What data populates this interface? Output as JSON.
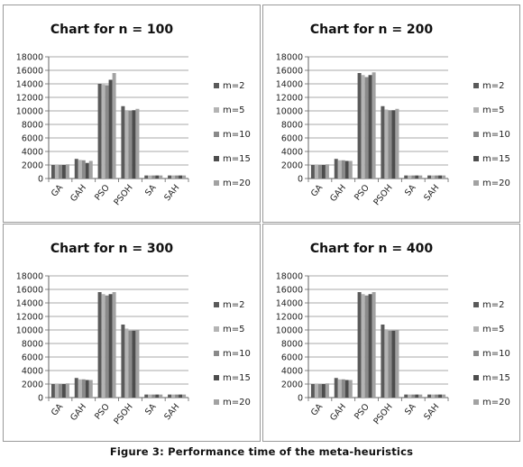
{
  "caption": "Figure 3: Performance time of the meta-heuristics",
  "legend": [
    "m=2",
    "m=5",
    "m=10",
    "m=15",
    "m=20"
  ],
  "series_colors": [
    "#5a5a5a",
    "#b4b4b4",
    "#8a8a8a",
    "#4d4d4d",
    "#a2a2a2"
  ],
  "chart_data": [
    {
      "type": "bar",
      "title": "Chart for n = 100",
      "categories": [
        "GA",
        "GAH",
        "PSO",
        "PSOH",
        "SA",
        "SAH"
      ],
      "ylim": [
        0,
        18000
      ],
      "yticks": [
        "0",
        "2000",
        "4000",
        "6000",
        "8000",
        "10000",
        "12000",
        "14000",
        "16000",
        "18000"
      ],
      "grid": true,
      "legend_position": "right",
      "series": [
        {
          "name": "m=2",
          "values": [
            2000,
            2900,
            14000,
            10700,
            450,
            450
          ]
        },
        {
          "name": "m=5",
          "values": [
            2000,
            2750,
            13900,
            10100,
            450,
            450
          ]
        },
        {
          "name": "m=10",
          "values": [
            2000,
            2700,
            13800,
            10050,
            450,
            450
          ]
        },
        {
          "name": "m=15",
          "values": [
            2000,
            2300,
            14600,
            10100,
            450,
            450
          ]
        },
        {
          "name": "m=20",
          "values": [
            2100,
            2600,
            15600,
            10300,
            450,
            450
          ]
        }
      ]
    },
    {
      "type": "bar",
      "title": "Chart for n = 200",
      "categories": [
        "GA",
        "GAH",
        "PSO",
        "PSOH",
        "SA",
        "SAH"
      ],
      "ylim": [
        0,
        18000
      ],
      "yticks": [
        "0",
        "2000",
        "4000",
        "6000",
        "8000",
        "10000",
        "12000",
        "14000",
        "16000",
        "18000"
      ],
      "grid": true,
      "legend_position": "right",
      "series": [
        {
          "name": "m=2",
          "values": [
            2000,
            2900,
            15600,
            10700,
            450,
            450
          ]
        },
        {
          "name": "m=5",
          "values": [
            2000,
            2700,
            15300,
            10200,
            450,
            450
          ]
        },
        {
          "name": "m=10",
          "values": [
            2000,
            2700,
            15000,
            10100,
            450,
            450
          ]
        },
        {
          "name": "m=15",
          "values": [
            2000,
            2600,
            15300,
            10100,
            450,
            450
          ]
        },
        {
          "name": "m=20",
          "values": [
            2100,
            2600,
            15700,
            10300,
            450,
            450
          ]
        }
      ]
    },
    {
      "type": "bar",
      "title": "Chart for n = 300",
      "categories": [
        "GA",
        "GAH",
        "PSO",
        "PSOH",
        "SA",
        "SAH"
      ],
      "ylim": [
        0,
        18000
      ],
      "yticks": [
        "0",
        "2000",
        "4000",
        "6000",
        "8000",
        "10000",
        "12000",
        "14000",
        "16000",
        "18000"
      ],
      "grid": true,
      "legend_position": "right",
      "series": [
        {
          "name": "m=2",
          "values": [
            2000,
            2900,
            15600,
            10800,
            450,
            450
          ]
        },
        {
          "name": "m=5",
          "values": [
            2000,
            2700,
            15300,
            10200,
            450,
            450
          ]
        },
        {
          "name": "m=10",
          "values": [
            2000,
            2700,
            15100,
            9900,
            450,
            450
          ]
        },
        {
          "name": "m=15",
          "values": [
            2000,
            2600,
            15300,
            9900,
            450,
            450
          ]
        },
        {
          "name": "m=20",
          "values": [
            2100,
            2600,
            15600,
            10000,
            450,
            450
          ]
        }
      ]
    },
    {
      "type": "bar",
      "title": "Chart for n = 400",
      "categories": [
        "GA",
        "GAH",
        "PSO",
        "PSOH",
        "SA",
        "SAH"
      ],
      "ylim": [
        0,
        18000
      ],
      "yticks": [
        "0",
        "2000",
        "4000",
        "6000",
        "8000",
        "10000",
        "12000",
        "14000",
        "16000",
        "18000"
      ],
      "grid": true,
      "legend_position": "right",
      "series": [
        {
          "name": "m=2",
          "values": [
            2000,
            2900,
            15600,
            10800,
            450,
            450
          ]
        },
        {
          "name": "m=5",
          "values": [
            2000,
            2700,
            15300,
            10100,
            450,
            450
          ]
        },
        {
          "name": "m=10",
          "values": [
            2000,
            2700,
            15100,
            9900,
            450,
            450
          ]
        },
        {
          "name": "m=15",
          "values": [
            2000,
            2600,
            15300,
            9900,
            450,
            450
          ]
        },
        {
          "name": "m=20",
          "values": [
            2100,
            2600,
            15600,
            10000,
            450,
            450
          ]
        }
      ]
    }
  ]
}
